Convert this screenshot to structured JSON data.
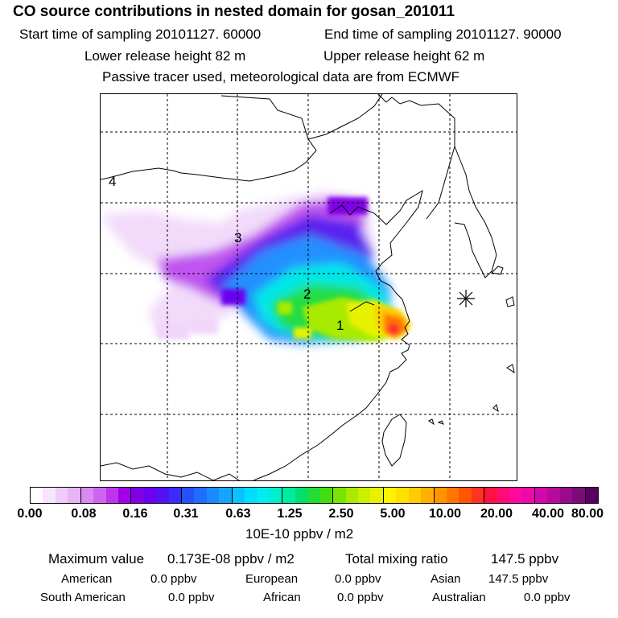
{
  "header": {
    "title": "CO  source contributions in nested domain for gosan_201011",
    "start_label": "Start time of sampling 20101127. 60000",
    "end_label": "End time of sampling 20101127. 90000",
    "lower_label": "Lower release height   82 m",
    "upper_label": "Upper release height   62 m",
    "tracer_label": "Passive tracer used, meteorological data are from ECMWF"
  },
  "map": {
    "region_labels": [
      "1",
      "2",
      "3",
      "4"
    ],
    "receptor_marker": "asterisk-icon"
  },
  "colorbar": {
    "ticks": [
      "0.00",
      "0.08",
      "0.16",
      "0.31",
      "0.63",
      "1.25",
      "2.50",
      "5.00",
      "10.00",
      "20.00",
      "40.00",
      "80.00"
    ],
    "colors": [
      "#ffffff",
      "#f7e6fb",
      "#efcdf8",
      "#e8b3f5",
      "#d98af2",
      "#cc66ef",
      "#c033ec",
      "#a400e8",
      "#8000e6",
      "#6a00ee",
      "#5011f5",
      "#3a2cfb",
      "#2450ff",
      "#1d6dff",
      "#1a8bff",
      "#14a6ff",
      "#0ac2ff",
      "#00ddff",
      "#00ecf0",
      "#00f0cc",
      "#00eaa0",
      "#00e070",
      "#22dd33",
      "#44dd11",
      "#7ae300",
      "#a8ea00",
      "#ccef00",
      "#e8f200",
      "#fff200",
      "#ffe000",
      "#ffcc00",
      "#ffb000",
      "#ff9400",
      "#ff7700",
      "#ff5500",
      "#ff3322",
      "#ff1144",
      "#ff0a77",
      "#ff0aa0",
      "#ee09aa",
      "#d208aa",
      "#b60a9c",
      "#9a0a8c",
      "#7e0a7a",
      "#5a0060"
    ],
    "units": "10E-10 ppbv / m2"
  },
  "summary": {
    "max_label": "Maximum value",
    "max_value": "0.173E-08 ppbv / m2",
    "total_label": "Total mixing ratio",
    "total_value": "147.5 ppbv",
    "regions": [
      {
        "name": "American",
        "value": "0.0 ppbv"
      },
      {
        "name": "European",
        "value": "0.0 ppbv"
      },
      {
        "name": "Asian",
        "value": "147.5 ppbv"
      },
      {
        "name": "South American",
        "value": "0.0 ppbv"
      },
      {
        "name": "African",
        "value": "0.0 ppbv"
      },
      {
        "name": "Australian",
        "value": "0.0 ppbv"
      }
    ]
  }
}
